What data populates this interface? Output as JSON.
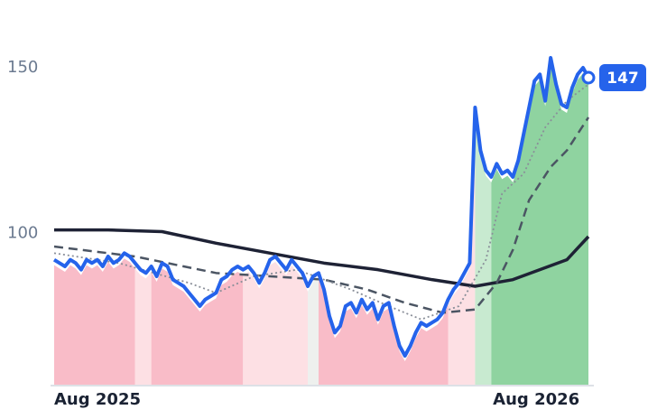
{
  "chart_data": {
    "type": "line",
    "x": [
      0,
      1,
      2,
      3,
      4,
      5,
      6,
      7,
      8,
      9,
      10,
      11,
      12,
      13,
      14,
      15,
      16,
      17,
      18,
      19,
      20,
      21,
      22,
      23,
      24,
      25,
      26,
      27,
      28,
      29,
      30,
      31,
      32,
      33,
      34,
      35,
      36,
      37,
      38,
      39,
      40,
      41,
      42,
      43,
      44,
      45,
      46,
      47,
      48,
      49,
      50,
      51,
      52,
      53,
      54,
      55,
      56,
      57,
      58,
      59,
      60,
      61,
      62,
      63,
      64,
      65,
      66,
      67,
      68,
      69,
      70,
      71,
      72,
      73,
      74,
      75,
      76,
      77,
      78,
      79,
      80,
      81,
      82,
      83,
      84,
      85,
      86,
      87,
      88,
      89,
      90,
      91,
      92,
      93,
      94,
      95,
      96,
      97,
      98,
      99
    ],
    "xlim": [
      0,
      99
    ],
    "xticks": [
      {
        "value": 0,
        "label": "Aug 2025"
      },
      {
        "value": 90,
        "label": "Aug 2026"
      }
    ],
    "ylim": [
      54,
      165
    ],
    "yticks": [
      100,
      150
    ],
    "series": [
      {
        "color": "#2563eb",
        "values": [
          92,
          91,
          90,
          92,
          91,
          89,
          92,
          91,
          92,
          90,
          93,
          91,
          92,
          94,
          93,
          91,
          89,
          88,
          90,
          87,
          91,
          90,
          86,
          85,
          84,
          82,
          80,
          78,
          80,
          81,
          82,
          86,
          87,
          89,
          90,
          89,
          90,
          88,
          85,
          88,
          92,
          93,
          91,
          89,
          92,
          90,
          88,
          84,
          87,
          88,
          83,
          75,
          70,
          72,
          78,
          79,
          76,
          80,
          77,
          79,
          74,
          78,
          79,
          72,
          66,
          63,
          66,
          70,
          73,
          72,
          73,
          74,
          76,
          80,
          83,
          85,
          88,
          91,
          138,
          125,
          119,
          117,
          121,
          118,
          119,
          117,
          122,
          130,
          138,
          146,
          148,
          140,
          153,
          145,
          139,
          138,
          144,
          148,
          150,
          147
        ]
      },
      {
        "color": "#1e2235",
        "style": "solid",
        "x": [
          0,
          10,
          20,
          30,
          40,
          50,
          60,
          70,
          78,
          85,
          90,
          95,
          99
        ],
        "values": [
          101,
          101,
          100.5,
          97,
          94,
          91,
          89,
          86,
          84,
          86,
          89,
          92,
          99
        ]
      },
      {
        "color": "#4b5563",
        "style": "dashed",
        "x": [
          0,
          15,
          30,
          40,
          50,
          58,
          65,
          72,
          78,
          82,
          85,
          88,
          92,
          95,
          99
        ],
        "values": [
          96,
          93,
          88,
          87,
          86,
          83,
          79,
          76,
          77,
          85,
          95,
          110,
          120,
          125,
          135
        ]
      },
      {
        "color": "#8a8f99",
        "style": "dotted",
        "x": [
          0,
          12,
          25,
          30,
          37,
          45,
          55,
          62,
          68,
          75,
          80,
          83,
          87,
          91,
          95,
          99
        ],
        "values": [
          94,
          91,
          85,
          82,
          87,
          89,
          83,
          78,
          74,
          78,
          92,
          112,
          118,
          132,
          140,
          145
        ]
      }
    ],
    "regions": [
      {
        "start": 0,
        "end": 15,
        "color": "#f9bcc8"
      },
      {
        "start": 15,
        "end": 18,
        "color": "#fde0e4"
      },
      {
        "start": 18,
        "end": 35,
        "color": "#f9bcc8"
      },
      {
        "start": 35,
        "end": 47,
        "color": "#fde0e4"
      },
      {
        "start": 47,
        "end": 49,
        "color": "#eef0ee"
      },
      {
        "start": 49,
        "end": 73,
        "color": "#f9bcc8"
      },
      {
        "start": 73,
        "end": 78,
        "color": "#fde0e4"
      },
      {
        "start": 78,
        "end": 81,
        "color": "#c8ead0"
      },
      {
        "start": 81,
        "end": 99,
        "color": "#8fd3a0"
      }
    ]
  }
}
